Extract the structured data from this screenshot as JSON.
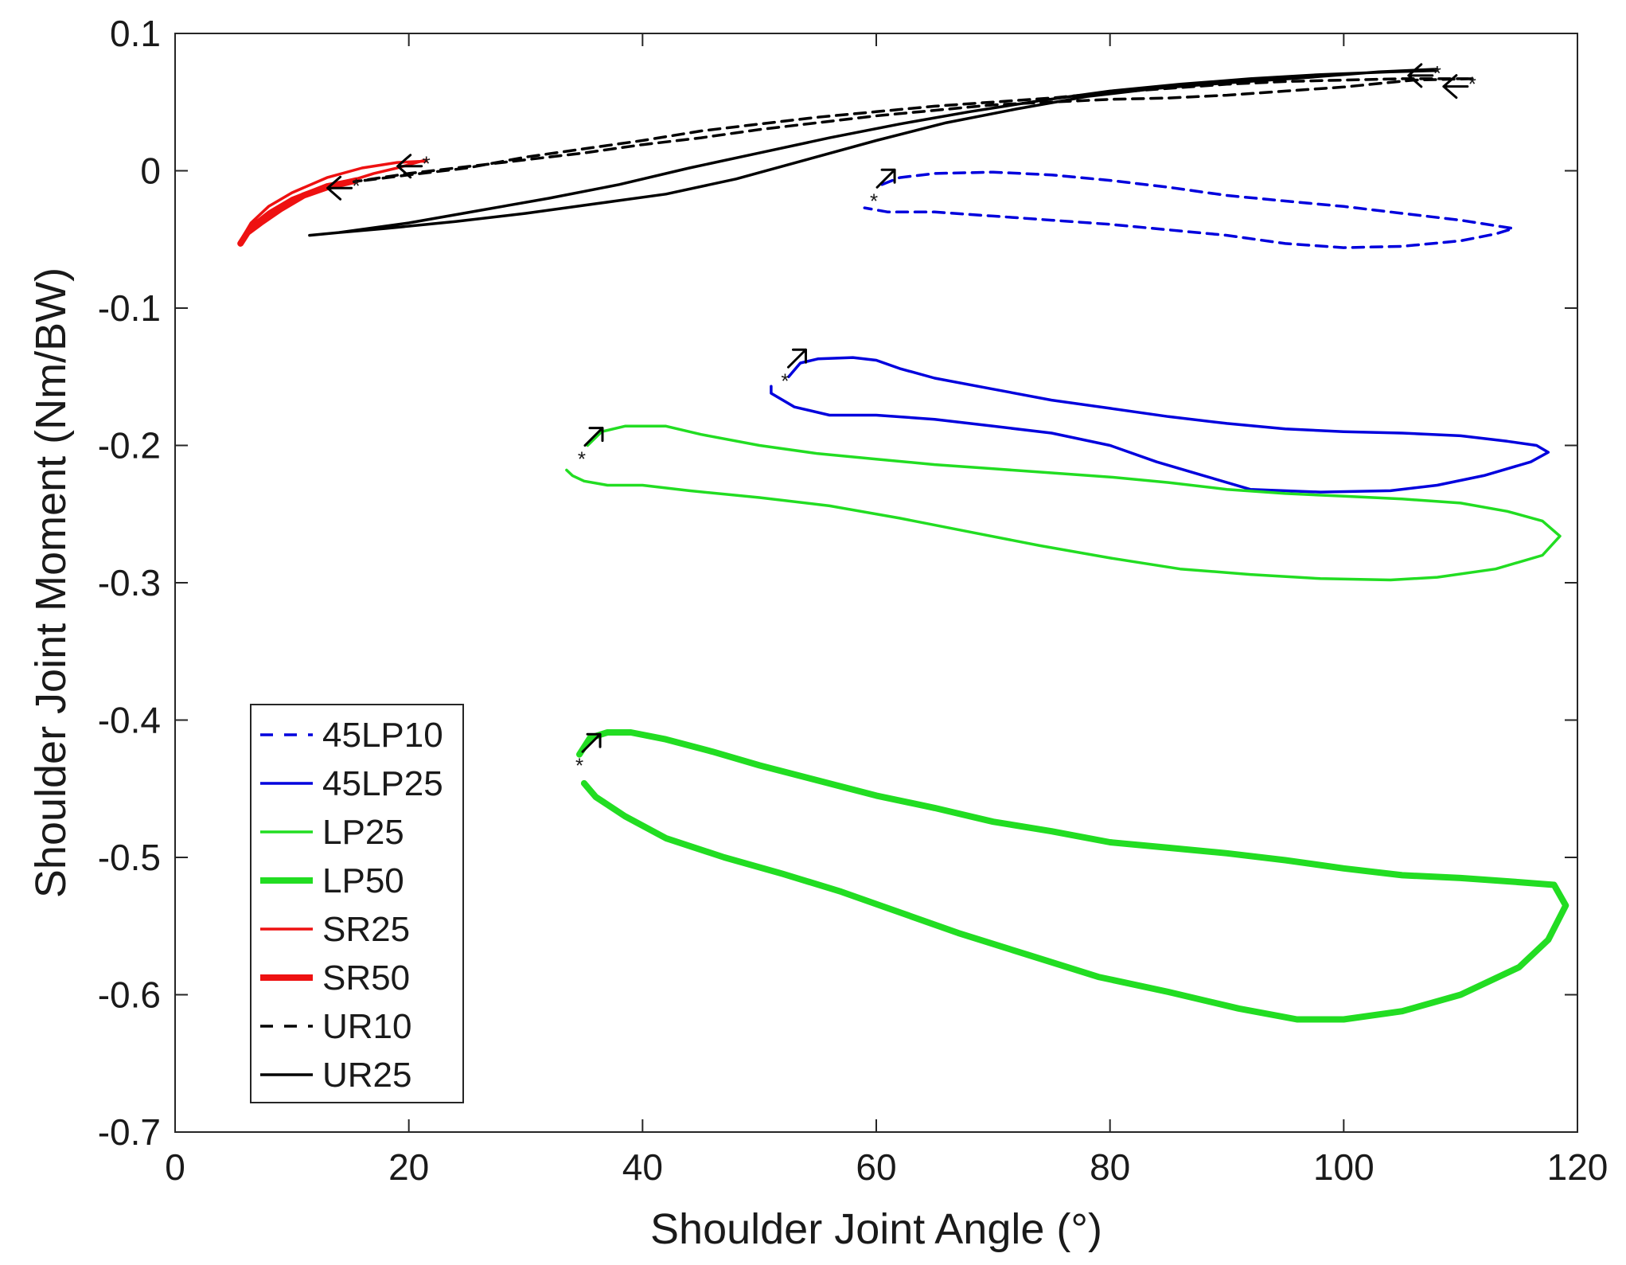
{
  "chart_data": {
    "type": "line",
    "title": "",
    "xlabel": "Shoulder Joint Angle (°)",
    "ylabel": "Shoulder Joint Moment (Nm/BW)",
    "xlim": [
      0,
      120
    ],
    "ylim": [
      -0.7,
      0.1
    ],
    "x_ticks": [
      0,
      20,
      40,
      60,
      80,
      100,
      120
    ],
    "x_tick_labels": [
      "0",
      "20",
      "40",
      "60",
      "80",
      "100",
      "120"
    ],
    "y_ticks": [
      0.1,
      0,
      -0.1,
      -0.2,
      -0.3,
      -0.4,
      -0.5,
      -0.6,
      -0.7
    ],
    "y_tick_labels": [
      "0.1",
      "0",
      "-0.1",
      "-0.2",
      "-0.3",
      "-0.4",
      "-0.5",
      "-0.6",
      "-0.7"
    ],
    "grid": false,
    "legend_position": "bottom-left",
    "series": [
      {
        "name": "45LP10",
        "color": "#0000dd",
        "style": "dashed",
        "weight": "thin",
        "points": [
          [
            60.5,
            -0.01
          ],
          [
            62,
            -0.005
          ],
          [
            65,
            -0.002
          ],
          [
            70,
            -0.001
          ],
          [
            75,
            -0.003
          ],
          [
            80,
            -0.007
          ],
          [
            85,
            -0.012
          ],
          [
            90,
            -0.018
          ],
          [
            95,
            -0.022
          ],
          [
            100,
            -0.026
          ],
          [
            105,
            -0.031
          ],
          [
            110,
            -0.036
          ],
          [
            113,
            -0.04
          ],
          [
            114.5,
            -0.042
          ],
          [
            113,
            -0.046
          ],
          [
            110,
            -0.051
          ],
          [
            105,
            -0.055
          ],
          [
            100,
            -0.056
          ],
          [
            95,
            -0.053
          ],
          [
            90,
            -0.047
          ],
          [
            85,
            -0.043
          ],
          [
            80,
            -0.039
          ],
          [
            75,
            -0.036
          ],
          [
            70,
            -0.033
          ],
          [
            65,
            -0.03
          ],
          [
            61,
            -0.03
          ],
          [
            59,
            -0.027
          ]
        ],
        "start_marker": [
          59.8,
          -0.019
        ],
        "arrow": "up-right"
      },
      {
        "name": "45LP25",
        "color": "#0000dd",
        "style": "solid",
        "weight": "thin",
        "points": [
          [
            52.5,
            -0.15
          ],
          [
            53.5,
            -0.14
          ],
          [
            55,
            -0.137
          ],
          [
            58,
            -0.136
          ],
          [
            60,
            -0.138
          ],
          [
            62,
            -0.144
          ],
          [
            65,
            -0.151
          ],
          [
            70,
            -0.159
          ],
          [
            75,
            -0.167
          ],
          [
            80,
            -0.173
          ],
          [
            85,
            -0.179
          ],
          [
            90,
            -0.184
          ],
          [
            95,
            -0.188
          ],
          [
            100,
            -0.19
          ],
          [
            105,
            -0.191
          ],
          [
            110,
            -0.193
          ],
          [
            114,
            -0.197
          ],
          [
            116.5,
            -0.2
          ],
          [
            117.5,
            -0.205
          ],
          [
            116,
            -0.212
          ],
          [
            112,
            -0.222
          ],
          [
            108,
            -0.229
          ],
          [
            104,
            -0.233
          ],
          [
            98,
            -0.234
          ],
          [
            92,
            -0.232
          ],
          [
            88,
            -0.222
          ],
          [
            84,
            -0.212
          ],
          [
            80,
            -0.2
          ],
          [
            75,
            -0.191
          ],
          [
            70,
            -0.186
          ],
          [
            65,
            -0.181
          ],
          [
            60,
            -0.178
          ],
          [
            56,
            -0.178
          ],
          [
            53,
            -0.172
          ],
          [
            51,
            -0.162
          ],
          [
            51,
            -0.157
          ]
        ],
        "start_marker": [
          52.2,
          -0.15
        ],
        "arrow": "up-right"
      },
      {
        "name": "LP25",
        "color": "#22dd22",
        "style": "solid",
        "weight": "thin",
        "points": [
          [
            35.3,
            -0.2
          ],
          [
            36.5,
            -0.19
          ],
          [
            38.5,
            -0.186
          ],
          [
            42,
            -0.186
          ],
          [
            45,
            -0.192
          ],
          [
            50,
            -0.2
          ],
          [
            55,
            -0.206
          ],
          [
            60,
            -0.21
          ],
          [
            65,
            -0.214
          ],
          [
            70,
            -0.217
          ],
          [
            75,
            -0.22
          ],
          [
            80,
            -0.223
          ],
          [
            85,
            -0.227
          ],
          [
            90,
            -0.232
          ],
          [
            95,
            -0.235
          ],
          [
            100,
            -0.237
          ],
          [
            105,
            -0.239
          ],
          [
            110,
            -0.242
          ],
          [
            114,
            -0.248
          ],
          [
            117,
            -0.255
          ],
          [
            118.5,
            -0.266
          ],
          [
            117,
            -0.28
          ],
          [
            113,
            -0.29
          ],
          [
            108,
            -0.296
          ],
          [
            104,
            -0.298
          ],
          [
            98,
            -0.297
          ],
          [
            92,
            -0.294
          ],
          [
            86,
            -0.29
          ],
          [
            80,
            -0.282
          ],
          [
            74,
            -0.273
          ],
          [
            68,
            -0.263
          ],
          [
            62,
            -0.253
          ],
          [
            56,
            -0.244
          ],
          [
            50,
            -0.238
          ],
          [
            44,
            -0.233
          ],
          [
            40,
            -0.229
          ],
          [
            37,
            -0.229
          ],
          [
            35,
            -0.226
          ],
          [
            34,
            -0.222
          ],
          [
            33.5,
            -0.218
          ]
        ],
        "start_marker": [
          34.8,
          -0.207
        ],
        "arrow": "up-right"
      },
      {
        "name": "LP50",
        "color": "#22dd22",
        "style": "solid",
        "weight": "thick",
        "points": [
          [
            34.6,
            -0.425
          ],
          [
            35.5,
            -0.413
          ],
          [
            37,
            -0.409
          ],
          [
            39,
            -0.409
          ],
          [
            42,
            -0.414
          ],
          [
            46,
            -0.423
          ],
          [
            50,
            -0.433
          ],
          [
            55,
            -0.444
          ],
          [
            60,
            -0.455
          ],
          [
            65,
            -0.464
          ],
          [
            70,
            -0.474
          ],
          [
            75,
            -0.481
          ],
          [
            80,
            -0.489
          ],
          [
            85,
            -0.493
          ],
          [
            90,
            -0.497
          ],
          [
            95,
            -0.502
          ],
          [
            100,
            -0.508
          ],
          [
            105,
            -0.513
          ],
          [
            110,
            -0.515
          ],
          [
            115,
            -0.518
          ],
          [
            118,
            -0.52
          ],
          [
            119,
            -0.535
          ],
          [
            117.5,
            -0.56
          ],
          [
            115,
            -0.58
          ],
          [
            110,
            -0.6
          ],
          [
            105,
            -0.612
          ],
          [
            100,
            -0.618
          ],
          [
            96,
            -0.618
          ],
          [
            91,
            -0.61
          ],
          [
            85,
            -0.598
          ],
          [
            79,
            -0.587
          ],
          [
            73,
            -0.571
          ],
          [
            67,
            -0.555
          ],
          [
            62,
            -0.54
          ],
          [
            57,
            -0.525
          ],
          [
            52,
            -0.512
          ],
          [
            47,
            -0.5
          ],
          [
            42,
            -0.486
          ],
          [
            38.5,
            -0.47
          ],
          [
            36,
            -0.456
          ],
          [
            35,
            -0.446
          ]
        ],
        "start_marker": [
          34.6,
          -0.43
        ],
        "arrow": "up-right"
      },
      {
        "name": "SR25",
        "color": "#ee1111",
        "style": "solid",
        "weight": "thin",
        "points": [
          [
            21.5,
            0.007
          ],
          [
            19,
            0.006
          ],
          [
            16,
            0.002
          ],
          [
            13,
            -0.005
          ],
          [
            10,
            -0.016
          ],
          [
            8,
            -0.026
          ],
          [
            6.5,
            -0.038
          ],
          [
            5.8,
            -0.048
          ],
          [
            6.5,
            -0.04
          ],
          [
            8,
            -0.03
          ],
          [
            10,
            -0.02
          ],
          [
            13,
            -0.01
          ],
          [
            15.5,
            -0.006
          ],
          [
            17,
            -0.002
          ],
          [
            19,
            0.002
          ],
          [
            21.5,
            0.008
          ]
        ],
        "start_marker": [
          21.5,
          0.008
        ],
        "arrow": "left"
      },
      {
        "name": "SR50",
        "color": "#ee1111",
        "style": "solid",
        "weight": "thick",
        "points": [
          [
            15.5,
            -0.007
          ],
          [
            13,
            -0.012
          ],
          [
            11,
            -0.018
          ],
          [
            9,
            -0.028
          ],
          [
            7.3,
            -0.038
          ],
          [
            6.2,
            -0.045
          ],
          [
            5.6,
            -0.053
          ]
        ],
        "start_marker": [
          15.5,
          -0.008
        ],
        "arrow": "left"
      },
      {
        "name": "UR10",
        "color": "#000000",
        "style": "dashed",
        "weight": "thin",
        "points": [
          [
            111,
            0.067
          ],
          [
            106,
            0.066
          ],
          [
            100,
            0.061
          ],
          [
            95,
            0.058
          ],
          [
            90,
            0.055
          ],
          [
            85,
            0.053
          ],
          [
            80,
            0.052
          ],
          [
            75,
            0.05
          ],
          [
            70,
            0.048
          ],
          [
            65,
            0.044
          ],
          [
            60,
            0.04
          ],
          [
            55,
            0.035
          ],
          [
            50,
            0.03
          ],
          [
            45,
            0.024
          ],
          [
            40,
            0.019
          ],
          [
            35,
            0.013
          ],
          [
            30,
            0.008
          ],
          [
            25,
            0.003
          ],
          [
            20,
            -0.002
          ],
          [
            15.3,
            -0.008
          ],
          [
            20,
            -0.003
          ],
          [
            25,
            0.002
          ],
          [
            30,
            0.01
          ],
          [
            35,
            0.016
          ],
          [
            40,
            0.022
          ],
          [
            45,
            0.029
          ],
          [
            50,
            0.034
          ],
          [
            55,
            0.039
          ],
          [
            60,
            0.043
          ],
          [
            65,
            0.047
          ],
          [
            70,
            0.05
          ],
          [
            75,
            0.053
          ],
          [
            80,
            0.057
          ],
          [
            85,
            0.06
          ],
          [
            90,
            0.063
          ],
          [
            95,
            0.065
          ],
          [
            100,
            0.066
          ],
          [
            105,
            0.067
          ],
          [
            111,
            0.067
          ]
        ],
        "start_marker": [
          111,
          0.066
        ],
        "arrow": "left"
      },
      {
        "name": "UR25",
        "color": "#000000",
        "style": "solid",
        "weight": "thin",
        "points": [
          [
            108,
            0.074
          ],
          [
            103,
            0.072
          ],
          [
            97,
            0.068
          ],
          [
            90,
            0.064
          ],
          [
            84,
            0.06
          ],
          [
            78,
            0.054
          ],
          [
            72,
            0.045
          ],
          [
            66,
            0.035
          ],
          [
            60,
            0.022
          ],
          [
            54,
            0.008
          ],
          [
            48,
            -0.006
          ],
          [
            42,
            -0.017
          ],
          [
            36,
            -0.024
          ],
          [
            30,
            -0.031
          ],
          [
            24,
            -0.037
          ],
          [
            18,
            -0.042
          ],
          [
            14,
            -0.045
          ],
          [
            11.5,
            -0.047
          ],
          [
            14,
            -0.045
          ],
          [
            20,
            -0.038
          ],
          [
            26,
            -0.029
          ],
          [
            32,
            -0.02
          ],
          [
            38,
            -0.01
          ],
          [
            44,
            0.002
          ],
          [
            50,
            0.013
          ],
          [
            56,
            0.024
          ],
          [
            62,
            0.034
          ],
          [
            68,
            0.043
          ],
          [
            74,
            0.051
          ],
          [
            80,
            0.058
          ],
          [
            86,
            0.063
          ],
          [
            92,
            0.067
          ],
          [
            98,
            0.07
          ],
          [
            104,
            0.072
          ],
          [
            108,
            0.073
          ]
        ],
        "start_marker": [
          108,
          0.074
        ],
        "arrow": "left"
      }
    ]
  }
}
